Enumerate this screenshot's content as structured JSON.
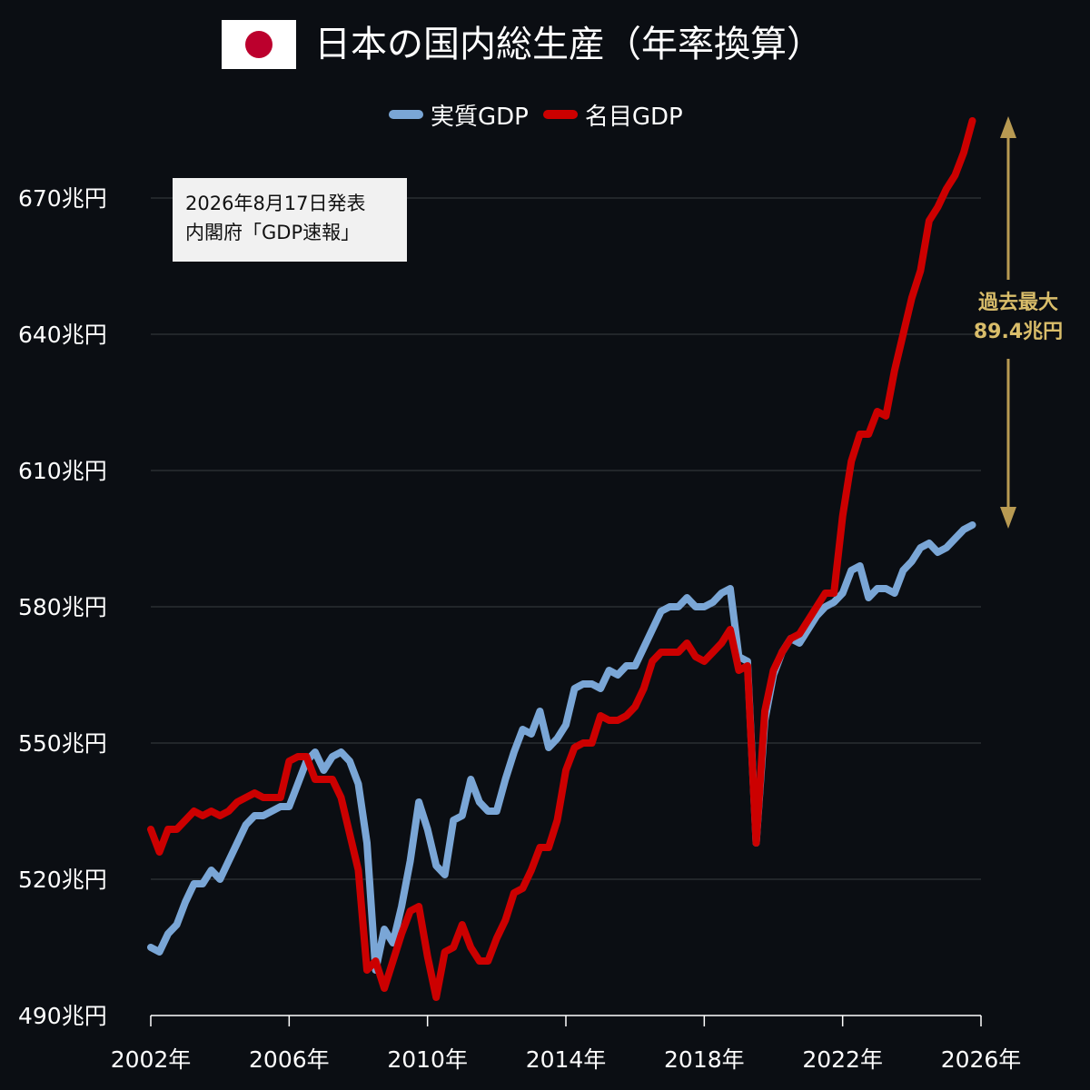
{
  "title": "日本の国内総生産（年率換算）",
  "flag_icon": "japan-flag-icon",
  "source_note": {
    "line1": "2026年8月17日発表",
    "line2": "内閣府「GDP速報」"
  },
  "annotation": {
    "line1": "過去最大",
    "line2": "89.4兆円",
    "color": "#d9bd6a"
  },
  "colors": {
    "background": "#0b0e13",
    "real": "#7aa6d6",
    "nominal": "#cc0000",
    "grid": "#3a3d42",
    "flag_red": "#bc002d"
  },
  "chart_data": {
    "type": "line",
    "title": "日本の国内総生産（年率換算）",
    "xlabel": "",
    "ylabel": "",
    "xlim": [
      2002,
      2026
    ],
    "ylim": [
      490,
      690
    ],
    "x_ticks": [
      2002,
      2006,
      2010,
      2014,
      2018,
      2022,
      2026
    ],
    "x_tick_labels": [
      "2002年",
      "2006年",
      "2010年",
      "2014年",
      "2018年",
      "2022年",
      "2026年"
    ],
    "y_ticks": [
      490,
      520,
      550,
      580,
      610,
      640,
      670
    ],
    "y_tick_labels": [
      "490兆円",
      "520兆円",
      "550兆円",
      "580兆円",
      "610兆円",
      "640兆円",
      "670兆円"
    ],
    "grid": true,
    "legend": "top-center",
    "x": [
      2002.0,
      2002.25,
      2002.5,
      2002.75,
      2003.0,
      2003.25,
      2003.5,
      2003.75,
      2004.0,
      2004.25,
      2004.5,
      2004.75,
      2005.0,
      2005.25,
      2005.5,
      2005.75,
      2006.0,
      2006.25,
      2006.5,
      2006.75,
      2007.0,
      2007.25,
      2007.5,
      2007.75,
      2008.0,
      2008.25,
      2008.5,
      2008.75,
      2009.0,
      2009.25,
      2009.5,
      2009.75,
      2010.0,
      2010.25,
      2010.5,
      2010.75,
      2011.0,
      2011.25,
      2011.5,
      2011.75,
      2012.0,
      2012.25,
      2012.5,
      2012.75,
      2013.0,
      2013.25,
      2013.5,
      2013.75,
      2014.0,
      2014.25,
      2014.5,
      2014.75,
      2015.0,
      2015.25,
      2015.5,
      2015.75,
      2016.0,
      2016.25,
      2016.5,
      2016.75,
      2017.0,
      2017.25,
      2017.5,
      2017.75,
      2018.0,
      2018.25,
      2018.5,
      2018.75,
      2019.0,
      2019.25,
      2019.5,
      2019.75,
      2020.0,
      2020.25,
      2020.5,
      2020.75,
      2021.0,
      2021.25,
      2021.5,
      2021.75,
      2022.0,
      2022.25,
      2022.5,
      2022.75,
      2023.0,
      2023.25,
      2023.5,
      2023.75,
      2024.0,
      2024.25,
      2024.5,
      2024.75,
      2025.0,
      2025.25,
      2025.5,
      2025.75
    ],
    "series": [
      {
        "name": "実質GDP",
        "color": "#7aa6d6",
        "values": [
          505,
          504,
          508,
          510,
          515,
          519,
          519,
          522,
          520,
          524,
          528,
          532,
          534,
          534,
          535,
          536,
          536,
          541,
          546,
          548,
          544,
          547,
          548,
          546,
          541,
          528,
          500,
          509,
          506,
          514,
          524,
          537,
          531,
          523,
          521,
          533,
          534,
          542,
          537,
          535,
          535,
          542,
          548,
          553,
          552,
          557,
          549,
          551,
          554,
          562,
          563,
          563,
          562,
          566,
          565,
          567,
          567,
          571,
          575,
          579,
          580,
          580,
          582,
          580,
          580,
          581,
          583,
          584,
          569,
          568,
          528,
          555,
          565,
          570,
          573,
          572,
          575,
          578,
          580,
          581,
          583,
          588,
          589,
          582,
          584,
          584,
          583,
          588,
          590,
          593,
          594,
          592,
          593,
          595,
          597,
          598
        ]
      },
      {
        "name": "名目GDP",
        "color": "#cc0000",
        "values": [
          531,
          526,
          531,
          531,
          533,
          535,
          534,
          535,
          534,
          535,
          537,
          538,
          539,
          538,
          538,
          538,
          546,
          547,
          547,
          542,
          542,
          542,
          538,
          530,
          522,
          500,
          502,
          496,
          502,
          508,
          513,
          514,
          503,
          494,
          504,
          505,
          510,
          505,
          502,
          502,
          507,
          511,
          517,
          518,
          522,
          527,
          527,
          533,
          544,
          549,
          550,
          550,
          556,
          555,
          555,
          556,
          558,
          562,
          568,
          570,
          570,
          570,
          572,
          569,
          568,
          570,
          572,
          575,
          566,
          567,
          528,
          557,
          566,
          570,
          573,
          574,
          577,
          580,
          583,
          583,
          600,
          612,
          618,
          618,
          623,
          622,
          632,
          640,
          648,
          654,
          665,
          668,
          672,
          675,
          680,
          687
        ]
      }
    ]
  }
}
